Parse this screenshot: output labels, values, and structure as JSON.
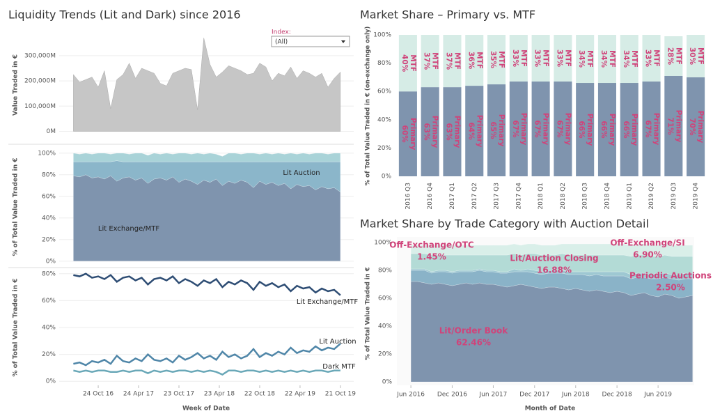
{
  "chart_data": [
    {
      "type": "weekly-panels",
      "title": "Liquidity Trends (Lit and Dark) since 2016",
      "filter": {
        "label": "Index:",
        "value": "(All)"
      },
      "xlabel": "Week of Date",
      "x": [
        "2016-07-04",
        "2016-08-01",
        "2016-08-29",
        "2016-09-26",
        "2016-10-24",
        "2016-11-21",
        "2016-12-19",
        "2017-01-16",
        "2017-02-13",
        "2017-03-13",
        "2017-04-10",
        "2017-05-08",
        "2017-06-05",
        "2017-07-03",
        "2017-07-31",
        "2017-08-28",
        "2017-09-25",
        "2017-10-23",
        "2017-11-20",
        "2017-12-18",
        "2018-01-15",
        "2018-02-12",
        "2018-03-12",
        "2018-04-09",
        "2018-05-07",
        "2018-06-04",
        "2018-07-02",
        "2018-07-30",
        "2018-08-27",
        "2018-09-24",
        "2018-10-22",
        "2018-11-19",
        "2018-12-17",
        "2019-01-14",
        "2019-02-11",
        "2019-03-11",
        "2019-04-08",
        "2019-05-06",
        "2019-06-03",
        "2019-07-01",
        "2019-07-29",
        "2019-08-26",
        "2019-09-23",
        "2019-10-21"
      ],
      "xlim": [
        "2016-05-01",
        "2019-12-20"
      ],
      "xticks": [
        {
          "value": "2016-10-24",
          "label": "24 Oct 16"
        },
        {
          "value": "2017-04-24",
          "label": "24 Apr 17"
        },
        {
          "value": "2017-10-23",
          "label": "23 Oct 17"
        },
        {
          "value": "2018-04-23",
          "label": "23 Apr 18"
        },
        {
          "value": "2018-10-22",
          "label": "22 Oct 18"
        },
        {
          "value": "2019-04-22",
          "label": "22 Apr 19"
        },
        {
          "value": "2019-10-21",
          "label": "21 Oct 19"
        }
      ],
      "grid": true,
      "volume": {
        "ylabel": "Value Traded in €",
        "color": "#c6c6c6",
        "values": [
          225000,
          195000,
          205000,
          215000,
          175000,
          240000,
          90000,
          205000,
          225000,
          270000,
          210000,
          250000,
          240000,
          230000,
          190000,
          180000,
          230000,
          240000,
          250000,
          245000,
          85000,
          370000,
          265000,
          215000,
          235000,
          260000,
          250000,
          240000,
          225000,
          230000,
          270000,
          255000,
          200000,
          230000,
          220000,
          255000,
          210000,
          240000,
          230000,
          215000,
          230000,
          175000,
          210000,
          235000
        ],
        "ylim": [
          -40000,
          410000
        ],
        "yticks": [
          {
            "value": 0,
            "label": "0M"
          },
          {
            "value": 100000,
            "label": "100,000M"
          },
          {
            "value": 200000,
            "label": "200,000M"
          },
          {
            "value": 300000,
            "label": "300,000M"
          }
        ]
      },
      "share_ylabel": "% of Total Value Traded in €",
      "series": [
        {
          "name": "Lit Exchange/MTF",
          "color": "#2e4d74",
          "values": [
            79,
            78,
            80,
            77,
            78,
            76,
            79,
            74,
            77,
            78,
            75,
            77,
            72,
            76,
            77,
            75,
            78,
            73,
            76,
            74,
            71,
            75,
            73,
            76,
            70,
            74,
            72,
            75,
            73,
            68,
            74,
            71,
            73,
            70,
            72,
            67,
            71,
            69,
            70,
            66,
            69,
            67,
            68,
            64
          ]
        },
        {
          "name": "Lit Auction",
          "color": "#4f86a8",
          "values": [
            13,
            14,
            12,
            15,
            14,
            16,
            13,
            19,
            15,
            14,
            17,
            15,
            20,
            16,
            15,
            17,
            14,
            19,
            16,
            18,
            21,
            17,
            19,
            16,
            22,
            18,
            20,
            17,
            19,
            24,
            18,
            21,
            19,
            22,
            20,
            25,
            21,
            23,
            22,
            26,
            23,
            25,
            24,
            28
          ]
        },
        {
          "name": "Dark MTF",
          "color": "#6aa8b8",
          "values": [
            8,
            7,
            8,
            7,
            8,
            8,
            7,
            7,
            8,
            7,
            8,
            8,
            6,
            8,
            7,
            8,
            7,
            8,
            8,
            7,
            8,
            7,
            8,
            7,
            5,
            8,
            8,
            7,
            8,
            8,
            7,
            8,
            7,
            8,
            7,
            8,
            7,
            8,
            7,
            8,
            8,
            7,
            8,
            8
          ]
        }
      ],
      "stacked": {
        "colors": [
          "#7f94ae",
          "#8bb6ca",
          "#a9d3d8"
        ],
        "ylim": [
          -4,
          105
        ],
        "yticks": [
          {
            "value": 0,
            "label": "0%"
          },
          {
            "value": 20,
            "label": "20%"
          },
          {
            "value": 40,
            "label": "40%"
          },
          {
            "value": 60,
            "label": "60%"
          },
          {
            "value": 80,
            "label": "80%"
          },
          {
            "value": 100,
            "label": "100%"
          }
        ]
      },
      "lines": {
        "ylim": [
          -3,
          83
        ],
        "yticks": [
          {
            "value": 0,
            "label": "0%"
          },
          {
            "value": 20,
            "label": "20%"
          },
          {
            "value": 40,
            "label": "40%"
          },
          {
            "value": 60,
            "label": "60%"
          },
          {
            "value": 80,
            "label": "80%"
          }
        ]
      }
    },
    {
      "type": "stacked-bar",
      "title": "Market Share – Primary vs. MTF",
      "ylabel": "% of Total Value Traded in € (on-exchange only)",
      "categories": [
        "2016 Q3",
        "2016 Q4",
        "2017 Q1",
        "2017 Q2",
        "2017 Q3",
        "2017 Q4",
        "2018 Q1",
        "2018 Q2",
        "2018 Q3",
        "2018 Q4",
        "2019 Q1",
        "2019 Q2",
        "2019 Q3",
        "2019 Q4"
      ],
      "series": [
        {
          "name": "Primary",
          "color": "#7f94ae",
          "values": [
            60,
            63,
            63,
            64,
            65,
            67,
            67,
            67,
            66,
            66,
            66,
            67,
            71,
            70
          ],
          "value_labels": [
            "60%",
            "63%",
            "63%",
            "64%",
            "65%",
            "67%",
            "67%",
            "67%",
            "66%",
            "66%",
            "66%",
            "67%",
            "71%",
            "70%"
          ]
        },
        {
          "name": "MTF",
          "color": "#d6ece6",
          "values": [
            40,
            37,
            37,
            36,
            35,
            33,
            33,
            33,
            34,
            34,
            34,
            33,
            28,
            30
          ],
          "value_labels": [
            "40%",
            "37%",
            "37%",
            "36%",
            "35%",
            "33%",
            "33%",
            "33%",
            "34%",
            "34%",
            "34%",
            "33%",
            "28%",
            "30%"
          ]
        }
      ],
      "ylim": [
        0,
        100
      ],
      "yticks": [
        {
          "value": 0,
          "label": "0%"
        },
        {
          "value": 20,
          "label": "20%"
        },
        {
          "value": 40,
          "label": "40%"
        },
        {
          "value": 60,
          "label": "60%"
        },
        {
          "value": 80,
          "label": "80%"
        },
        {
          "value": 100,
          "label": "100%"
        }
      ]
    },
    {
      "type": "stacked-area",
      "title": "Market Share by Trade Category with Auction Detail",
      "ylabel": "% of Total Value Traded in €",
      "xlabel": "Month of Date",
      "x": [
        "2016-06",
        "2016-07",
        "2016-08",
        "2016-09",
        "2016-10",
        "2016-11",
        "2016-12",
        "2017-01",
        "2017-02",
        "2017-03",
        "2017-04",
        "2017-05",
        "2017-06",
        "2017-07",
        "2017-08",
        "2017-09",
        "2017-10",
        "2017-11",
        "2017-12",
        "2018-01",
        "2018-02",
        "2018-03",
        "2018-04",
        "2018-05",
        "2018-06",
        "2018-07",
        "2018-08",
        "2018-09",
        "2018-10",
        "2018-11",
        "2018-12",
        "2019-01",
        "2019-02",
        "2019-03",
        "2019-04",
        "2019-05",
        "2019-06",
        "2019-07",
        "2019-08",
        "2019-09",
        "2019-10",
        "2019-11"
      ],
      "xlim": [
        "2016-03-31",
        "2019-11-08"
      ],
      "xticks": [
        {
          "value": "2016-06",
          "label": "Jun 2016"
        },
        {
          "value": "2016-12",
          "label": "Dec 2016"
        },
        {
          "value": "2017-06",
          "label": "Jun 2017"
        },
        {
          "value": "2017-12",
          "label": "Dec 2017"
        },
        {
          "value": "2018-06",
          "label": "Jun 2018"
        },
        {
          "value": "2018-12",
          "label": "Dec 2018"
        },
        {
          "value": "2019-06",
          "label": "Jun 2019"
        }
      ],
      "ylim": [
        -2.5,
        104
      ],
      "yticks": [
        {
          "value": 0,
          "label": "0%"
        },
        {
          "value": 20,
          "label": "20%"
        },
        {
          "value": 40,
          "label": "40%"
        },
        {
          "value": 60,
          "label": "60%"
        },
        {
          "value": 80,
          "label": "80%"
        },
        {
          "value": 100,
          "label": "100%"
        }
      ],
      "series": [
        {
          "name": "Lit/Order Book",
          "color": "#7f94ae",
          "total": 62.46,
          "total_label": "62.46%",
          "values": [
            72,
            72,
            71,
            70,
            71,
            70,
            69,
            70,
            71,
            70,
            71,
            70,
            70,
            69,
            68,
            69,
            70,
            69,
            68,
            67,
            68,
            68,
            67,
            66,
            67,
            66,
            65,
            66,
            65,
            64,
            65,
            64,
            62,
            63,
            64,
            62,
            61,
            63,
            62,
            60,
            61,
            62
          ]
        },
        {
          "name": "Lit/Auction Closing",
          "color": "#8ab3c8",
          "total": 16.88,
          "total_label": "16.88%",
          "values": [
            8,
            8,
            9,
            8,
            8,
            9,
            9,
            9,
            8,
            9,
            9,
            9,
            9,
            9,
            10,
            10,
            9,
            10,
            10,
            10,
            10,
            10,
            11,
            11,
            10,
            11,
            11,
            11,
            11,
            12,
            11,
            12,
            12,
            12,
            11,
            12,
            13,
            12,
            12,
            13,
            13,
            12
          ]
        },
        {
          "name": "Periodic Auctions",
          "color": "#9ec8d2",
          "total": 2.5,
          "total_label": "2.50%",
          "values": [
            1,
            1,
            1,
            1,
            1,
            1,
            1,
            1,
            1,
            1,
            1,
            1,
            1,
            1,
            1,
            2,
            1,
            2,
            2,
            2,
            2,
            2,
            2,
            2,
            2,
            2,
            3,
            2,
            3,
            3,
            3,
            3,
            3,
            3,
            3,
            3,
            4,
            3,
            3,
            4,
            4,
            4
          ]
        },
        {
          "name": "Off-Exchange/OTC",
          "color": "#b3dbd6",
          "total": 1.45,
          "total_label": "1.45%",
          "values": [
            11,
            11,
            11,
            12,
            11,
            11,
            12,
            11,
            11,
            11,
            10,
            11,
            11,
            12,
            12,
            11,
            11,
            11,
            12,
            12,
            11,
            11,
            12,
            12,
            12,
            12,
            12,
            12,
            12,
            12,
            12,
            12,
            13,
            13,
            13,
            13,
            12,
            13,
            13,
            13,
            12,
            12
          ]
        },
        {
          "name": "Off-Exchange/SI",
          "color": "#d9efe9",
          "total": 6.9,
          "total_label": "6.90%",
          "values": [
            6,
            6,
            6,
            7,
            7,
            7,
            7,
            7,
            7,
            7,
            7,
            7,
            7,
            7,
            7,
            7,
            7,
            7,
            7,
            7,
            7,
            7,
            7,
            8,
            8,
            8,
            8,
            8,
            8,
            8,
            8,
            8,
            8,
            8,
            8,
            8,
            8,
            8,
            8,
            8,
            8,
            8
          ]
        }
      ]
    }
  ]
}
